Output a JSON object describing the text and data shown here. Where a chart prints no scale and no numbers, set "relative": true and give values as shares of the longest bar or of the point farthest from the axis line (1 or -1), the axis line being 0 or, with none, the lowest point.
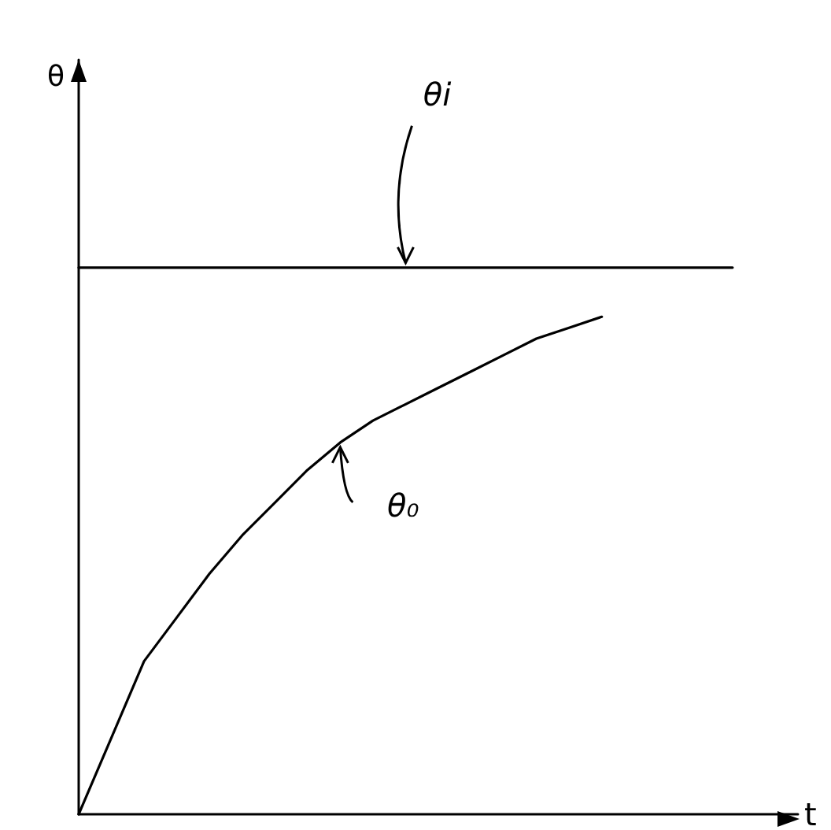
{
  "chart_data": {
    "type": "line",
    "relative": true,
    "xlabel": "t",
    "annotations": [
      "θ"
    ],
    "categories": [
      null,
      null,
      null,
      null,
      null,
      null,
      null,
      null,
      null,
      null,
      null,
      null,
      null,
      null,
      null,
      null,
      null,
      null,
      null,
      null,
      null,
      null,
      null
    ],
    "series": [
      {
        "name": "θi",
        "color": "#000000",
        "values": [
          1,
          1,
          1,
          1,
          1,
          1,
          1,
          1,
          1,
          1,
          1,
          1,
          1,
          1,
          1,
          1,
          1,
          1,
          1,
          1,
          1,
          null,
          null
        ]
      },
      {
        "name": "θ₀",
        "color": "#000000",
        "values": [
          0,
          0.14,
          0.28,
          0.36,
          0.44,
          0.51,
          0.57,
          0.63,
          0.68,
          0.72,
          0.75,
          0.78,
          0.81,
          0.84,
          0.87,
          0.89,
          0.91,
          null,
          null,
          null,
          null,
          null,
          null
        ]
      }
    ],
    "legend": false,
    "grid": false,
    "marker": "none",
    "line_style": "solid"
  }
}
